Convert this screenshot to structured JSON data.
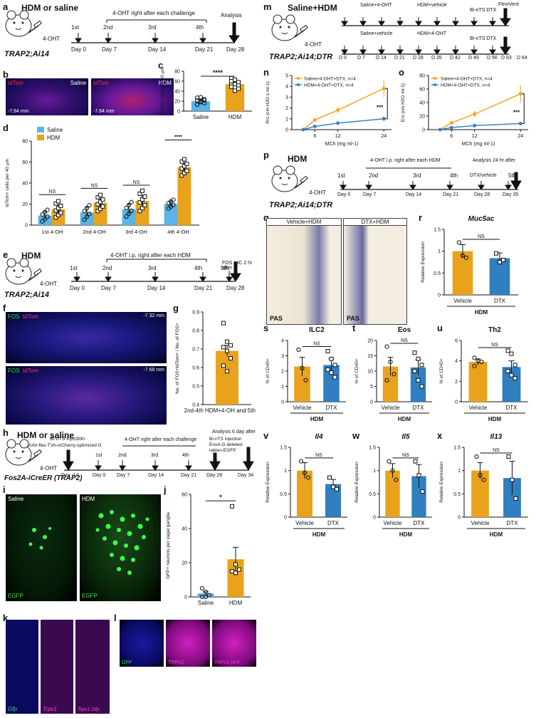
{
  "colors": {
    "saline": "#5ab4e6",
    "hdm": "#e8a21c",
    "vehicle": "#e8a21c",
    "dtx": "#2f7fc1",
    "sal_line": "#f5a623",
    "hdm_line": "#3a82c8"
  },
  "panels": {
    "a": "a",
    "b": "b",
    "c": "c",
    "d": "d",
    "e": "e",
    "f": "f",
    "g": "g",
    "h": "h",
    "i": "i",
    "j": "j",
    "k": "k",
    "l": "l",
    "m": "m",
    "n": "n",
    "o": "o",
    "p": "p",
    "q": "q",
    "r": "r",
    "s": "s",
    "t": "t",
    "u": "u",
    "v": "v",
    "w": "w",
    "x": "x"
  },
  "a": {
    "title": "HDM or saline",
    "drug": "4-OHT",
    "mouse": "TRAP2;Ai14",
    "bracket": "4-OHT right after each challenge",
    "analysis": "Analysis",
    "marks": [
      "1st",
      "2nd",
      "3rd",
      "4th"
    ],
    "days": [
      "Day 0",
      "Day 7",
      "Day 14",
      "Day 21",
      "Day 28"
    ]
  },
  "b": {
    "tdtom": "tdTom",
    "saline": "Saline",
    "hdm": "HDM",
    "coord1": "-7.84 mm",
    "coord2": "-7.84 mm"
  },
  "e": {
    "title": "HDM",
    "drug": "4-OHT",
    "mouse": "TRAP2;Ai14",
    "bracket": "4-OHT i.p. right after each HDM",
    "analysis": "FOS IHC 2 hr after",
    "marks": [
      "1st",
      "2nd",
      "3rd",
      "4th",
      "5th"
    ],
    "days": [
      "Day 0",
      "Day 7",
      "Day 14",
      "Day 21",
      "Day 28"
    ]
  },
  "f": {
    "fos": "FOS",
    "tdtom": "tdTom",
    "coord1": "-7.32 mm",
    "coord2": "-7.68 mm"
  },
  "h": {
    "title": "HDM or saline",
    "drug": "4-OHT",
    "mouse": "Fos2A-iCreER (TRAP2)",
    "inj1": "Bi-nTS injection",
    "inj1b": "AAV-flex-TVA-mCherry-optimized G",
    "bracket": "4-OHT right after each challenge",
    "analysis": "Analysis 6 day after",
    "inj2": "Bi-nTS injection",
    "inj2b": "EnvA-G deleted-",
    "inj2c": "rabies-EGFP",
    "marks": [
      "1st",
      "2nd",
      "3rd",
      "4th"
    ],
    "days": [
      "Day -14",
      "Day 0",
      "Day 7",
      "Day 14",
      "Day 21",
      "Day 28",
      "Day 34"
    ]
  },
  "i": {
    "saline": "Saline",
    "hdm": "HDM",
    "egfp": "EGFP"
  },
  "k": {
    "l1": "Gfp",
    "l2": "Trpv1",
    "l3": "Trpv1 Gfp"
  },
  "l": {
    "l1": "GFP",
    "l2": "TRPV1",
    "l3": "TRPV1 GFP"
  },
  "m": {
    "title": "Saline+HDM",
    "drug": "4-OHT",
    "mouse": "TRAP2;Ai14;DTR",
    "row1": {
      "b1": "Saline+4-OHT",
      "b2": "HDM+vehicle",
      "b3": "Bi-nTS DTX",
      "b4": "FlexiVent"
    },
    "row2": {
      "b1": "Saline+vehicle",
      "b2": "HDM+4-OHT",
      "b3": "Bi-nTS DTX"
    },
    "days": [
      "D 0",
      "D 7",
      "D 14",
      "D 21",
      "D 28",
      "D 35",
      "D 42",
      "D 49",
      "D 56",
      "D 63",
      "D 64"
    ]
  },
  "p": {
    "title": "HDM",
    "drug": "4-OHT",
    "mouse": "TRAP2;Ai14;DTR",
    "bracket": "4-OHT i.p. right after each HDM",
    "dtx": "DTX/vehicle",
    "analysis": "Analysis 24 hr after",
    "marks": [
      "1st",
      "2nd",
      "3rd",
      "4th",
      "5th"
    ],
    "days": [
      "Day 0",
      "Day 7",
      "Day 14",
      "Day 21",
      "Day 28",
      "Day 35"
    ]
  },
  "q": {
    "l1": "Vehicle+HDM",
    "l2": "DTX+HDM",
    "pas": "PAS"
  },
  "chart_data": [
    {
      "id": "c",
      "type": "bar",
      "categories": [
        "Saline",
        "HDM"
      ],
      "values": [
        20,
        54
      ],
      "errors": [
        3,
        4
      ],
      "ylabel": "tdTom+ cells per 40 µm",
      "ylim": [
        0,
        80
      ],
      "yticks": [
        0,
        20,
        40,
        60,
        80
      ],
      "sig": "****",
      "points": [
        [
          27,
          28,
          24,
          21,
          18,
          16,
          13,
          19,
          22
        ],
        [
          66,
          63,
          58,
          56,
          54,
          51,
          49,
          47,
          45,
          60,
          41
        ]
      ]
    },
    {
      "id": "d",
      "type": "bar",
      "categories": [
        "1st 4-OH",
        "2nd 4-OH",
        "3rd 4-OH",
        "4th 4-OH"
      ],
      "series": [
        {
          "name": "Saline",
          "values": [
            9,
            12,
            15,
            20
          ],
          "errors": [
            4,
            5,
            5,
            3
          ]
        },
        {
          "name": "HDM",
          "values": [
            15,
            21,
            23,
            55
          ],
          "errors": [
            4,
            4,
            5,
            4
          ]
        }
      ],
      "ylabel": "tdTom+ cells per 40 µm",
      "ylim": [
        0,
        80
      ],
      "yticks": [
        0,
        20,
        40,
        60,
        80
      ],
      "sigs": [
        "NS",
        "NS",
        "NS",
        "****"
      ]
    },
    {
      "id": "g",
      "type": "bar",
      "categories": [
        "2nd-4th HDM+4-OH and 5th HDM"
      ],
      "values": [
        0.69
      ],
      "errors": [
        0.03
      ],
      "ylabel": "No. of FOS+tdTom+ / No. of FOS+",
      "ylim": [
        0.4,
        0.9
      ],
      "yticks": [
        0.4,
        0.5,
        0.6,
        0.7,
        0.8,
        0.9
      ],
      "points": [
        0.84,
        0.74,
        0.72,
        0.71,
        0.69,
        0.65,
        0.61,
        0.58
      ]
    },
    {
      "id": "j",
      "type": "bar",
      "categories": [
        "Saline",
        "HDM"
      ],
      "values": [
        2,
        22
      ],
      "errors": [
        1,
        7
      ],
      "ylabel": "GFP+ neurons per vagal ganglia",
      "ylim": [
        0,
        60
      ],
      "yticks": [
        0,
        20,
        40,
        60
      ],
      "sig": "*",
      "points": [
        [
          5,
          3,
          1,
          0,
          0
        ],
        [
          53,
          19,
          16,
          15,
          14
        ]
      ]
    },
    {
      "id": "n",
      "type": "line",
      "x": [
        3,
        6,
        12,
        24
      ],
      "xlabel": "MCh (mg ml-1)",
      "ylabel": "Rrs (cm H2O s ml-1)",
      "ylim": [
        0,
        5
      ],
      "yticks": [
        0,
        1,
        2,
        3,
        4,
        5
      ],
      "series": [
        {
          "name": "Saline+4-OHT+DTX, n=4",
          "values": [
            0.0,
            0.9,
            1.8,
            3.8
          ],
          "errors": [
            0,
            0.1,
            0.3,
            0.8
          ]
        },
        {
          "name": "HDM+4-OHT+DTX, n=4",
          "values": [
            0.0,
            0.3,
            0.6,
            1.0
          ],
          "errors": [
            0,
            0.05,
            0.1,
            0.2
          ]
        }
      ],
      "sig": "***"
    },
    {
      "id": "o",
      "type": "line",
      "x": [
        3,
        6,
        12,
        24
      ],
      "xlabel": "MCh (mg ml-1)",
      "ylabel": "Ers (cm H2O ml-1)",
      "ylim": [
        0,
        80
      ],
      "yticks": [
        0,
        20,
        40,
        60,
        80
      ],
      "series": [
        {
          "name": "Saline+4-OHT+DTX, n=4",
          "values": [
            0,
            10,
            23,
            53
          ],
          "errors": [
            0,
            2,
            5,
            13
          ]
        },
        {
          "name": "HDM+4-OHT+DTX, n=4",
          "values": [
            0,
            3,
            6,
            9
          ],
          "errors": [
            0,
            1,
            1,
            2
          ]
        }
      ],
      "sig": "***"
    },
    {
      "id": "r",
      "type": "bar",
      "title": "Muc5ac",
      "categories": [
        "Vehicle",
        "DTX"
      ],
      "group": "HDM",
      "values": [
        1.0,
        0.84
      ],
      "errors": [
        0.15,
        0.12
      ],
      "ylabel": "Relative Expression",
      "ylim": [
        0,
        1.5
      ],
      "yticks": [
        0,
        0.5,
        1.0,
        1.5
      ],
      "sig": "NS",
      "points": [
        [
          1.2,
          0.9,
          0.85
        ],
        [
          0.95,
          0.75,
          0.8
        ]
      ]
    },
    {
      "id": "s",
      "type": "bar",
      "title": "ILC2",
      "categories": [
        "Vehicle",
        "DTX"
      ],
      "group": "HDM",
      "values": [
        2.3,
        2.4
      ],
      "errors": [
        0.6,
        0.4
      ],
      "ylabel": "% of CD45+",
      "ylim": [
        0,
        4
      ],
      "yticks": [
        0,
        1,
        2,
        3,
        4
      ],
      "sig": "NS",
      "points": [
        [
          3.4,
          2.2,
          1.4
        ],
        [
          3.3,
          2.8,
          2.4,
          2.1,
          1.9,
          1.6
        ]
      ]
    },
    {
      "id": "t",
      "type": "bar",
      "title": "Eos",
      "categories": [
        "Vehicle",
        "DTX"
      ],
      "group": "HDM",
      "values": [
        11.5,
        11.2
      ],
      "errors": [
        3,
        2.5
      ],
      "ylabel": "% of CD45+",
      "ylim": [
        0,
        20
      ],
      "yticks": [
        0,
        5,
        10,
        15,
        20
      ],
      "sig": "NS",
      "points": [
        [
          18,
          13,
          9,
          7
        ],
        [
          16,
          14,
          12,
          10,
          7,
          5
        ]
      ]
    },
    {
      "id": "u",
      "type": "bar",
      "title": "Th2",
      "categories": [
        "Vehicle",
        "DTX"
      ],
      "group": "HDM",
      "values": [
        3.9,
        3.4
      ],
      "errors": [
        0.3,
        0.6
      ],
      "ylabel": "% of CD45+",
      "ylim": [
        0,
        6
      ],
      "yticks": [
        0,
        2,
        4,
        6
      ],
      "sig": "NS",
      "points": [
        [
          4.3,
          4.0,
          3.9,
          3.5
        ],
        [
          5.0,
          4.7,
          3.6,
          3.0,
          2.6,
          2.3
        ]
      ]
    },
    {
      "id": "v",
      "type": "bar",
      "title": "Il4",
      "categories": [
        "Vehicle",
        "DTX"
      ],
      "group": "HDM",
      "values": [
        1.0,
        0.71
      ],
      "errors": [
        0.17,
        0.1
      ],
      "ylabel": "Relative Expression",
      "ylim": [
        0,
        1.5
      ],
      "yticks": [
        0,
        0.5,
        1.0,
        1.5
      ],
      "sig": "NS",
      "points": [
        [
          1.2,
          0.95,
          0.85
        ],
        [
          0.85,
          0.65,
          0.6
        ]
      ]
    },
    {
      "id": "w",
      "type": "bar",
      "title": "Il5",
      "categories": [
        "Vehicle",
        "DTX"
      ],
      "group": "HDM",
      "values": [
        1.0,
        0.88
      ],
      "errors": [
        0.15,
        0.25
      ],
      "ylabel": "Relative Expression",
      "ylim": [
        0,
        1.5
      ],
      "yticks": [
        0,
        0.5,
        1.0,
        1.5
      ],
      "sig": "NS",
      "points": [
        [
          1.2,
          1.0,
          0.8
        ],
        [
          1.2,
          0.9,
          0.55
        ]
      ]
    },
    {
      "id": "x",
      "type": "bar",
      "title": "Il13",
      "categories": [
        "Vehicle",
        "DTX"
      ],
      "group": "HDM",
      "values": [
        1.0,
        0.84
      ],
      "errors": [
        0.17,
        0.36
      ],
      "ylabel": "Relative Expression",
      "ylim": [
        0,
        1.5
      ],
      "yticks": [
        0,
        0.5,
        1.0,
        1.5
      ],
      "sig": "NS",
      "points": [
        [
          1.3,
          0.9,
          0.8
        ],
        [
          1.3,
          0.8,
          0.4
        ]
      ]
    }
  ]
}
